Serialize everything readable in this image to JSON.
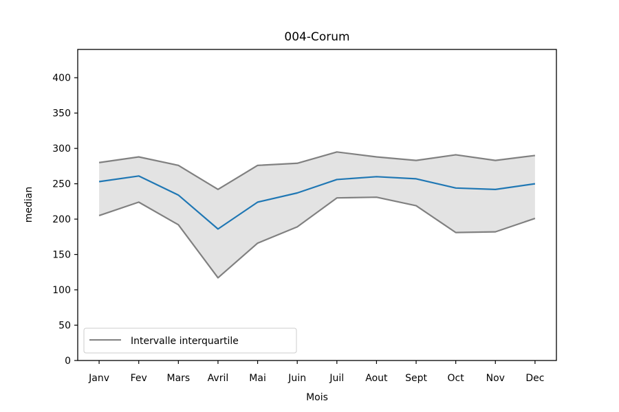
{
  "chart_data": {
    "type": "line",
    "title": "004-Corum",
    "xlabel": "Mois",
    "ylabel": "median",
    "categories": [
      "Janv",
      "Fev",
      "Mars",
      "Avril",
      "Mai",
      "Juin",
      "Juil",
      "Aout",
      "Sept",
      "Oct",
      "Nov",
      "Dec"
    ],
    "ylim": [
      0,
      440
    ],
    "yticks": [
      0,
      50,
      100,
      150,
      200,
      250,
      300,
      350,
      400
    ],
    "grid": false,
    "legend": {
      "position": "lower-left",
      "entries": [
        "Intervalle interquartile"
      ]
    },
    "series": [
      {
        "key": "median",
        "values": [
          253,
          261,
          234,
          186,
          224,
          237,
          256,
          260,
          257,
          244,
          242,
          250
        ],
        "color": "#1f77b4"
      },
      {
        "key": "q75",
        "values": [
          280,
          288,
          276,
          242,
          276,
          279,
          295,
          288,
          283,
          291,
          283,
          290
        ],
        "color": "#808080"
      },
      {
        "key": "q25",
        "values": [
          205,
          224,
          192,
          117,
          166,
          189,
          230,
          231,
          219,
          181,
          182,
          201
        ],
        "color": "#808080"
      }
    ],
    "fill_color": "#e3e3e3"
  }
}
